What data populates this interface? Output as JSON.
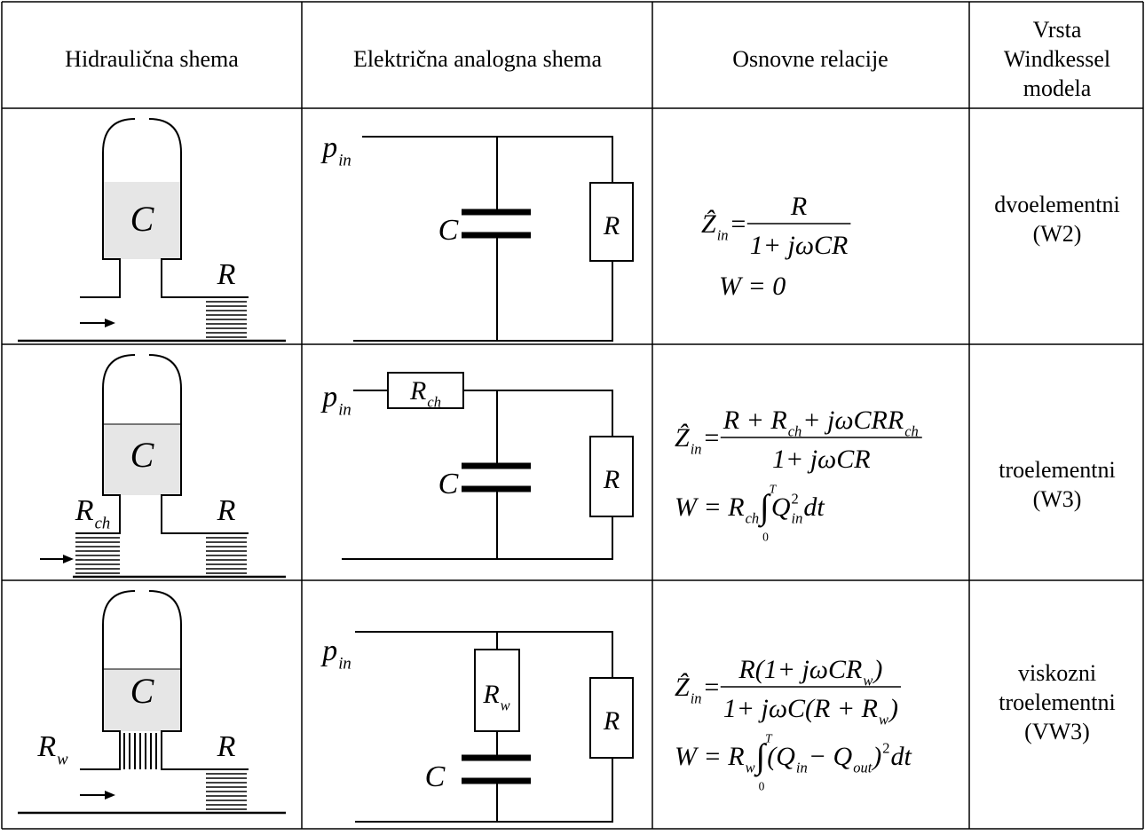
{
  "table": {
    "header": [
      "Hidraulična shema",
      "Električna analogna shema",
      "Osnovne relacije",
      [
        "Vrsta",
        "Windkessel",
        "modela"
      ]
    ],
    "rows": [
      {
        "hydraulic": [
          [
            "C"
          ],
          [
            "R"
          ]
        ],
        "electric": [
          [
            "p",
            {
              "sub": "in"
            }
          ],
          [
            "C"
          ],
          [
            "R"
          ]
        ],
        "formula": {
          "lhs": [
            "Ẑ",
            {
              "sub": "in"
            },
            " = "
          ],
          "num": [
            "R"
          ],
          "den": [
            "1+ jωCR"
          ],
          "work": [
            "W = 0"
          ]
        },
        "model": [
          "dvoelementni",
          "(W2)"
        ]
      },
      {
        "hydraulic": [
          [
            "C"
          ],
          [
            "R",
            {
              "sub": "ch"
            }
          ],
          [
            "R"
          ]
        ],
        "electric": [
          [
            "p",
            {
              "sub": "in"
            }
          ],
          [
            "R",
            {
              "sub": "ch"
            }
          ],
          [
            "C"
          ],
          [
            "R"
          ]
        ],
        "formula": {
          "lhs": [
            "Ẑ",
            {
              "sub": "in"
            },
            " = "
          ],
          "num": [
            "R + R",
            {
              "sub": "ch"
            },
            " + jωCRR",
            {
              "sub": "ch"
            }
          ],
          "den": [
            "1+ jωCR"
          ],
          "work": [
            "W = R",
            {
              "sub": "ch"
            },
            {
              "int": "∫",
              "upper": "T",
              "lower": "0"
            },
            "Q",
            {
              "sup": "2",
              "sub": "in"
            },
            "dt"
          ]
        },
        "model": [
          "troelementni",
          "(W3)"
        ]
      },
      {
        "hydraulic": [
          [
            "C"
          ],
          [
            "R",
            {
              "sub": "w"
            }
          ],
          [
            "R"
          ]
        ],
        "electric": [
          [
            "p",
            {
              "sub": "in"
            }
          ],
          [
            "R",
            {
              "sub": "w"
            }
          ],
          [
            "C"
          ],
          [
            "R"
          ]
        ],
        "formula": {
          "lhs": [
            "Ẑ",
            {
              "sub": "in"
            },
            " = "
          ],
          "num": [
            "R(1+ jωCR",
            {
              "sub": "w"
            },
            ")"
          ],
          "den": [
            "1+ jωC(R + R",
            {
              "sub": "w"
            },
            ")"
          ],
          "work": [
            "W = R",
            {
              "sub": "w"
            },
            {
              "int": "∫",
              "upper": "T",
              "lower": "0"
            },
            "(Q",
            {
              "sub": "in"
            },
            " − Q",
            {
              "sub": "out"
            },
            ")",
            {
              "sup": "2"
            },
            " dt"
          ]
        },
        "model": [
          "viskozni",
          "troelementni",
          "(VW3)"
        ]
      }
    ]
  }
}
